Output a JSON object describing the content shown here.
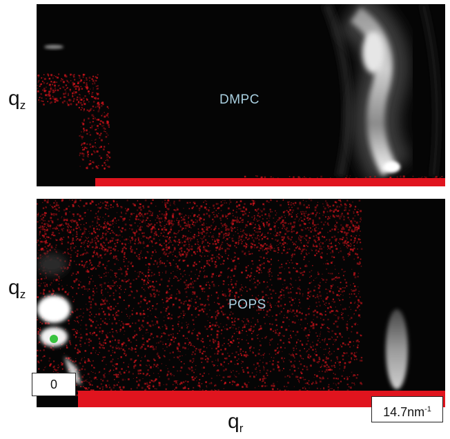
{
  "figure": {
    "axis_labels": {
      "vertical": {
        "base": "q",
        "subscript": "z"
      },
      "horizontal": {
        "base": "q",
        "subscript": "r"
      }
    },
    "panels": [
      {
        "label": "DMPC"
      },
      {
        "label": "POPS"
      }
    ],
    "scale": {
      "start": "0",
      "end_value": "14.7nm",
      "end_exponent": "-1"
    },
    "colors": {
      "background": "#050505",
      "specular_red": "#e0141e",
      "sample_text": "#a9cfe0",
      "beamstop_green": "#39c23f"
    }
  }
}
